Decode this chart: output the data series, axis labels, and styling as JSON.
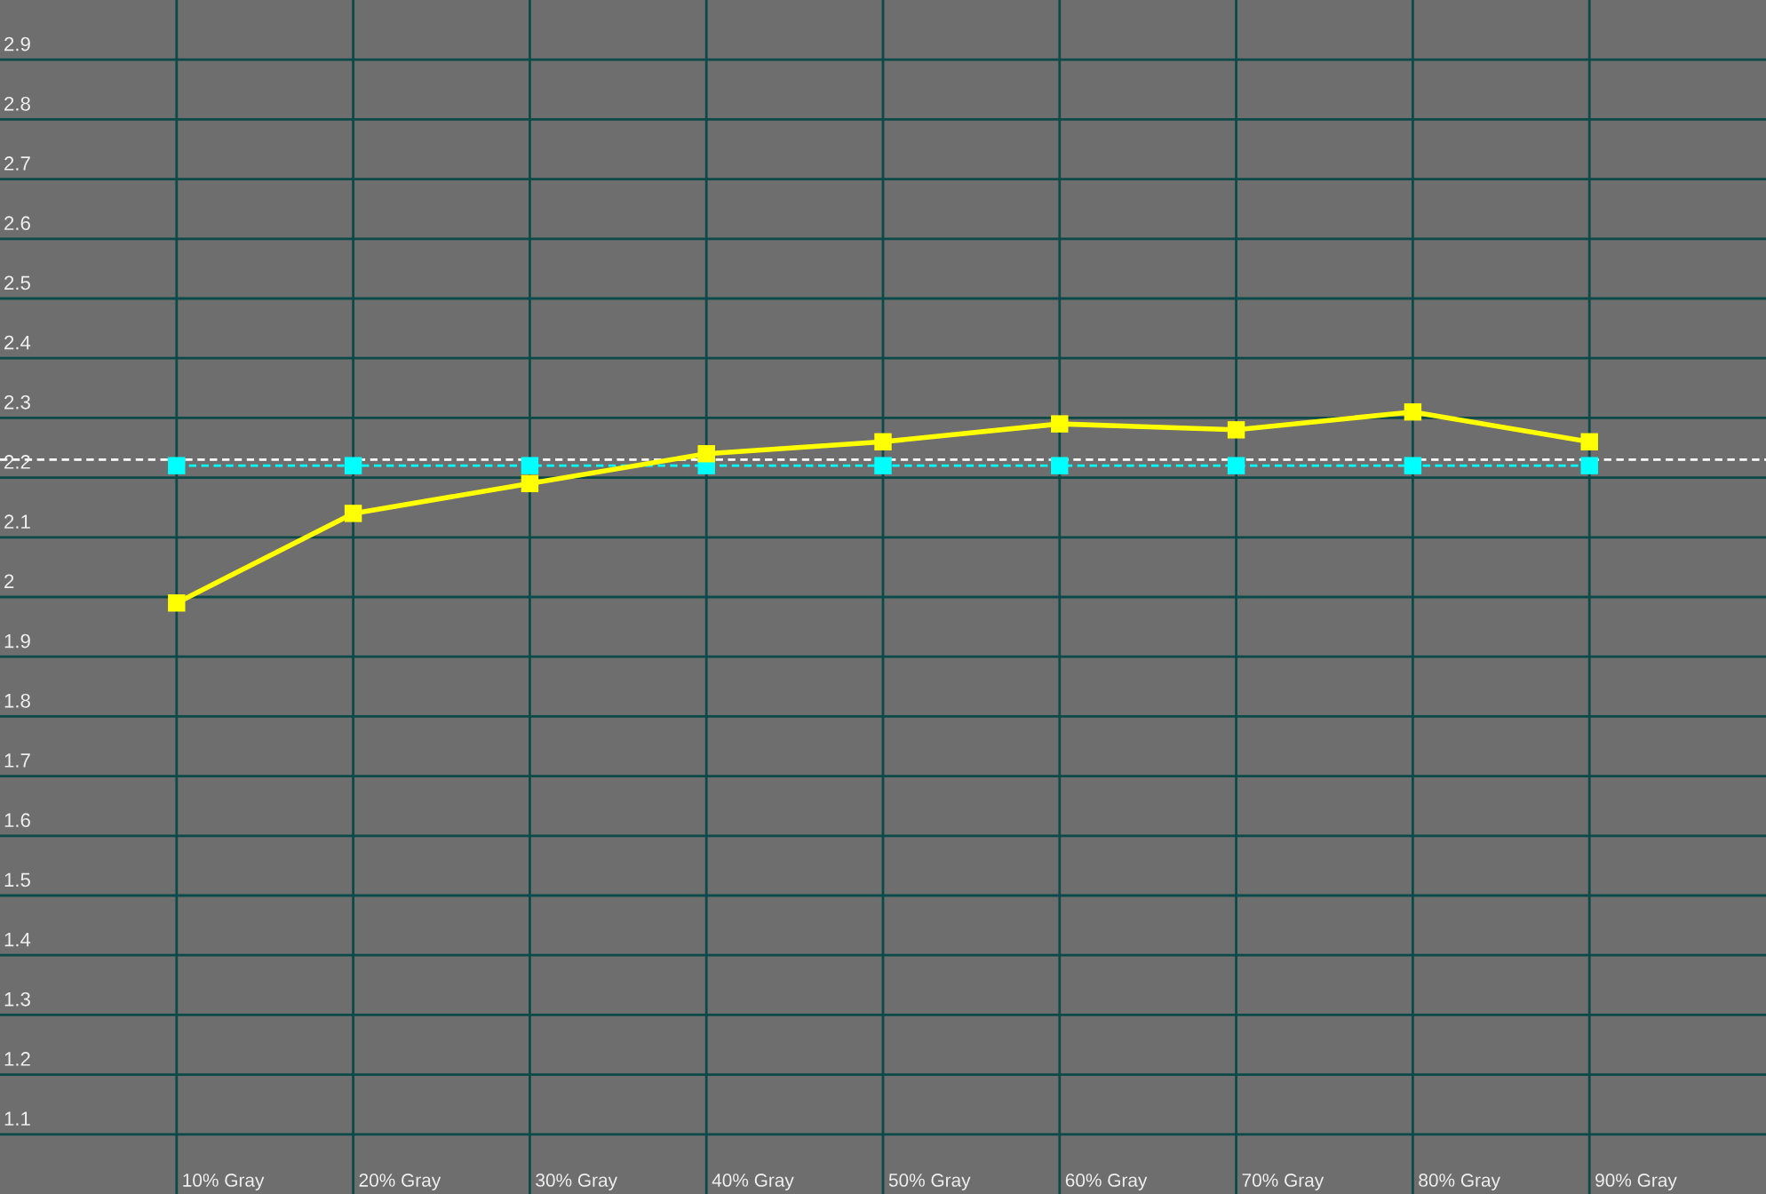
{
  "chart_data": {
    "type": "line",
    "categories": [
      "10% Gray",
      "20% Gray",
      "30% Gray",
      "40% Gray",
      "50% Gray",
      "60% Gray",
      "70% Gray",
      "80% Gray",
      "90% Gray"
    ],
    "series": [
      {
        "color": "#00ffff",
        "line_style": "dashed",
        "marker": "square",
        "values": [
          2.22,
          2.22,
          2.22,
          2.22,
          2.22,
          2.22,
          2.22,
          2.22,
          2.22
        ]
      },
      {
        "color": "#ffff00",
        "line_style": "solid",
        "marker": "square",
        "values": [
          1.99,
          2.14,
          2.19,
          2.24,
          2.26,
          2.29,
          2.28,
          2.31,
          2.26
        ]
      }
    ],
    "ylim": [
      1.0,
      3.0
    ],
    "yticks": [
      1.1,
      1.2,
      1.3,
      1.4,
      1.5,
      1.6,
      1.7,
      1.8,
      1.9,
      {
        "value": 2.0,
        "label": "2"
      },
      2.1,
      2.2,
      2.3,
      2.4,
      2.5,
      2.6,
      2.7,
      2.8,
      2.9
    ],
    "ref_lines": [
      {
        "axis": "y",
        "value": 2.23,
        "color": "#ffffff",
        "line_style": "dashed"
      }
    ],
    "grid": true
  }
}
